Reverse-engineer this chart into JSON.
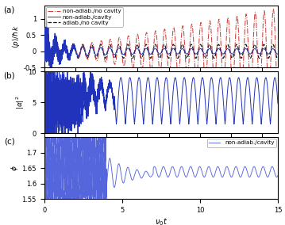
{
  "xlim": [
    0,
    15
  ],
  "xlabel": "$\\nu_0 t$",
  "panel_a": {
    "ylim": [
      -0.5,
      1.4
    ],
    "yticks": [
      -0.5,
      0,
      0.5,
      1
    ],
    "ylabel": "$\\langle p \\rangle/\\hbar k$",
    "legend_labels": [
      "non-adiab./no cavity",
      "non-adiab./cavity",
      "adiab./no cavity"
    ]
  },
  "panel_b": {
    "ylim": [
      0,
      10
    ],
    "yticks": [
      0,
      5,
      10
    ],
    "ylabel": "$|\\alpha|^2$"
  },
  "panel_c": {
    "ylim": [
      1.55,
      1.75
    ],
    "yticks": [
      1.55,
      1.6,
      1.65,
      1.7
    ],
    "ylabel": "$\\phi$",
    "legend_label": "non-adiab./cavity"
  },
  "color_nonadiab_nocavity": "#d04040",
  "color_nonadiab_cavity": "#2233bb",
  "color_adiab_nocavity": "#111111",
  "color_cavity_light": "#5566dd",
  "freq_main": 1.72,
  "freq_fast": 12.0
}
